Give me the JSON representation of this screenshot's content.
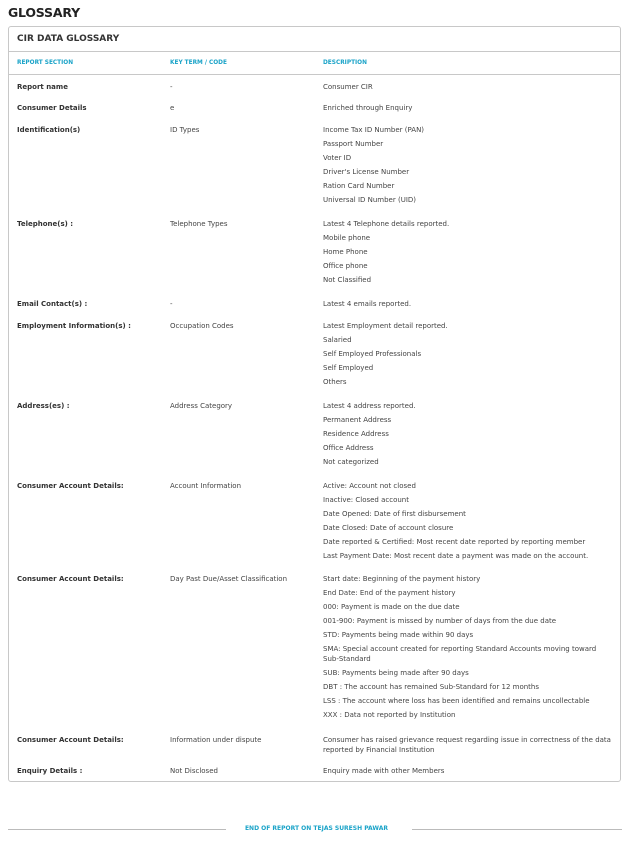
{
  "page_title": "GLOSSARY",
  "box_title": "CIR DATA GLOSSARY",
  "columns": [
    "REPORT SECTION",
    "KEY TERM / CODE",
    "DESCRIPTION"
  ],
  "rows": [
    {
      "section": "Report name",
      "term": "-",
      "desc": [
        "Consumer CIR"
      ]
    },
    {
      "section": "Consumer Details",
      "term": "e",
      "desc": [
        "Enriched through Enquiry"
      ]
    },
    {
      "section": "Identification(s)",
      "term": "ID Types",
      "desc": [
        "Income Tax ID Number (PAN)",
        "Passport Number",
        "Voter ID",
        "Driver's License Number",
        "Ration Card Number",
        "Universal ID Number (UID)"
      ]
    },
    {
      "section": "Telephone(s) :",
      "term": "Telephone Types",
      "desc": [
        "Latest 4 Telephone details reported.",
        "Mobile phone",
        "Home Phone",
        "Office phone",
        "Not Classified"
      ]
    },
    {
      "section": "Email Contact(s) :",
      "term": "-",
      "desc": [
        "Latest 4 emails reported."
      ]
    },
    {
      "section": "Employment Information(s) :",
      "term": "Occupation Codes",
      "desc": [
        "Latest Employment detail reported.",
        "Salaried",
        "Self Employed Professionals",
        "Self Employed",
        "Others"
      ]
    },
    {
      "section": "Address(es) :",
      "term": "Address Category",
      "desc": [
        "Latest 4 address reported.",
        "Permanent Address",
        "Residence Address",
        "Office Address",
        "Not categorized"
      ]
    },
    {
      "section": "Consumer Account Details:",
      "term": "Account Information",
      "desc": [
        "Active: Account not closed",
        "Inactive: Closed account",
        "Date Opened: Date of first disbursement",
        "Date Closed: Date of account closure",
        "Date reported & Certified: Most recent date reported by reporting member",
        "Last Payment Date: Most recent date a payment was made on the account."
      ]
    },
    {
      "section": "Consumer Account Details:",
      "term": "Day Past Due/Asset Classification",
      "desc": [
        "Start date: Beginning of the payment history",
        "End Date: End of the payment history",
        "000: Payment is made on the due date",
        "001-900: Payment is missed by number of days from the due date",
        "STD: Payments being made within 90 days",
        "SMA: Special account created for reporting Standard Accounts moving toward Sub-Standard",
        "SUB: Payments being made after 90 days",
        "DBT : The account has remained Sub-Standard for 12 months",
        "LSS : The account where loss has been identified and remains uncollectable",
        "XXX : Data not reported by Institution"
      ]
    },
    {
      "section": "Consumer Account Details:",
      "term": "Information under dispute",
      "desc": [
        "Consumer has raised grievance request regarding issue in correctness of the data reported by Financial Institution"
      ]
    },
    {
      "section": "Enquiry Details :",
      "term": "Not Disclosed",
      "desc": [
        "Enquiry made with other Members"
      ]
    }
  ],
  "footer": "END OF REPORT ON TEJAS SURESH PAWAR",
  "colors": {
    "accent": "#1aa3c8",
    "border": "#c8c8c8"
  }
}
